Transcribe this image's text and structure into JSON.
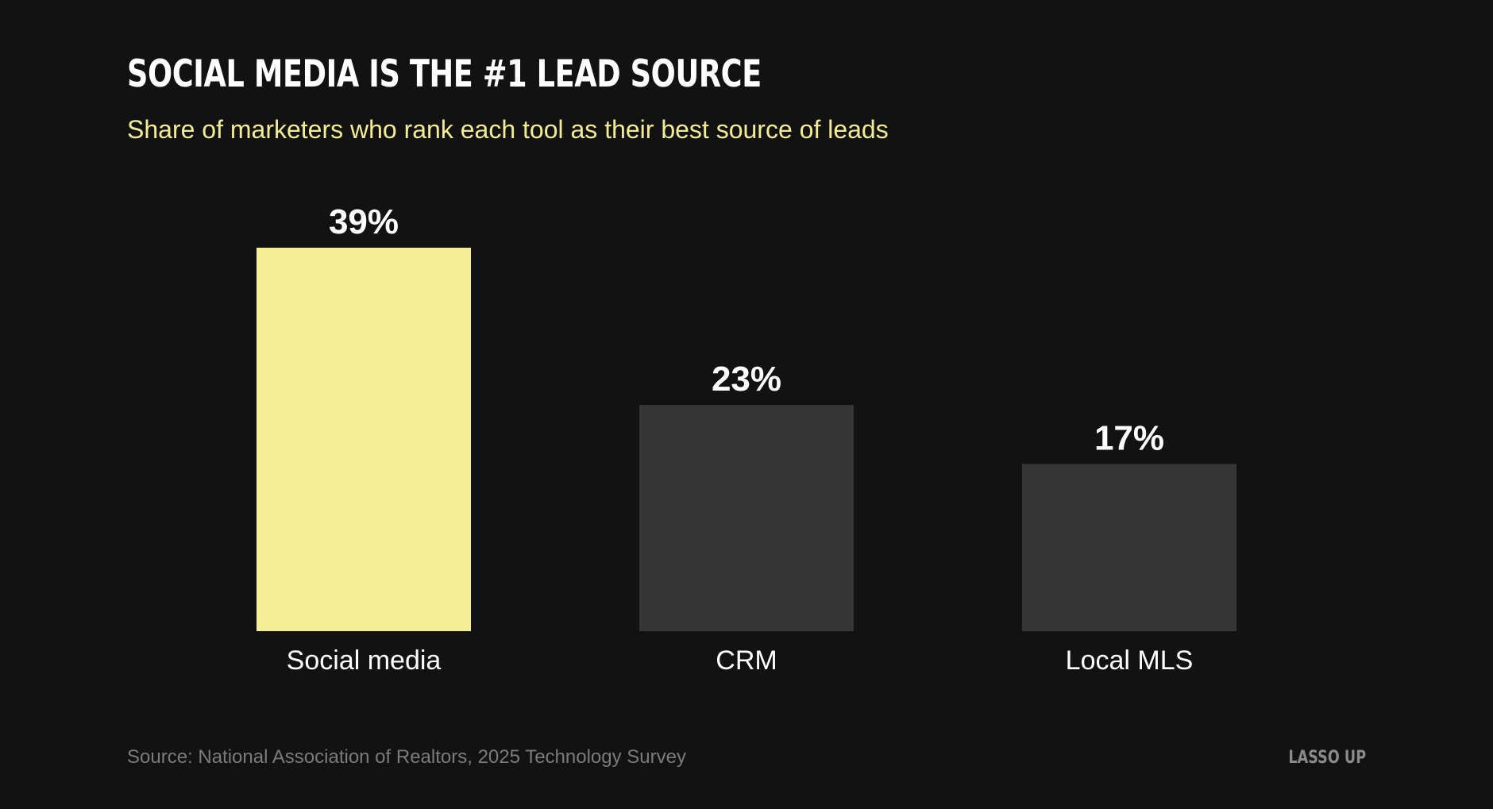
{
  "chart_data": {
    "type": "bar",
    "title": "SOCIAL MEDIA IS THE #1 LEAD SOURCE",
    "subtitle": "Share of marketers who rank each tool as their best source of leads",
    "categories": [
      "Social media",
      "CRM",
      "Local MLS"
    ],
    "values": [
      39,
      23,
      17
    ],
    "value_labels": [
      "39%",
      "23%",
      "17%"
    ],
    "unit": "%",
    "ylim": [
      0,
      39
    ],
    "grid": false,
    "legend": "none"
  },
  "footer": {
    "source": "Source: National Association of Realtors, 2025 Technology Survey",
    "brand": "LASSO UP"
  },
  "colors": {
    "background": "#121212",
    "highlight_bar": "#f5f096",
    "default_bar": "#363636",
    "title": "#ffffff",
    "subtitle": "#f3ec96",
    "label": "#ffffff",
    "footer": "#7b7b7b"
  }
}
